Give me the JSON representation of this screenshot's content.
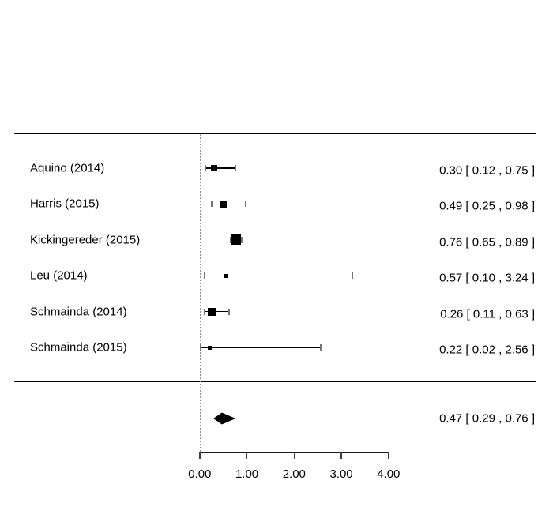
{
  "chart_data": {
    "type": "forest",
    "title": "",
    "studies": [
      {
        "label": "Aquino (2014)",
        "estimate": 0.3,
        "ci_lower": 0.12,
        "ci_upper": 0.75,
        "annotation": "0.30 [ 0.12 , 0.75 ]",
        "marker_size": 8
      },
      {
        "label": "Harris (2015)",
        "estimate": 0.49,
        "ci_lower": 0.25,
        "ci_upper": 0.98,
        "annotation": "0.49 [ 0.25 , 0.98 ]",
        "marker_size": 9
      },
      {
        "label": "Kickingereder (2015)",
        "estimate": 0.76,
        "ci_lower": 0.65,
        "ci_upper": 0.89,
        "annotation": "0.76 [ 0.65 , 0.89 ]",
        "marker_size": 13
      },
      {
        "label": "Leu (2014)",
        "estimate": 0.57,
        "ci_lower": 0.1,
        "ci_upper": 3.24,
        "annotation": "0.57 [ 0.10 , 3.24 ]",
        "marker_size": 5
      },
      {
        "label": "Schmainda (2014)",
        "estimate": 0.26,
        "ci_lower": 0.11,
        "ci_upper": 0.63,
        "annotation": "0.26 [ 0.11 , 0.63 ]",
        "marker_size": 10
      },
      {
        "label": "Schmainda (2015)",
        "estimate": 0.22,
        "ci_lower": 0.02,
        "ci_upper": 2.56,
        "annotation": "0.22 [ 0.02 , 2.56 ]",
        "marker_size": 5
      }
    ],
    "summary": {
      "estimate": 0.47,
      "ci_lower": 0.29,
      "ci_upper": 0.76,
      "annotation": "0.47 [ 0.29 , 0.76 ]"
    },
    "x_axis": {
      "range": [
        0,
        4
      ],
      "ticks": [
        0,
        1,
        2,
        3,
        4
      ],
      "tick_labels": [
        "0.00",
        "1.00",
        "2.00",
        "3.00",
        "4.00"
      ],
      "reference_line_value": 0.0,
      "reference_line_style": "dotted"
    },
    "layout_hints": {
      "grid": "off",
      "legend": "none",
      "orientation": "horizontal-ci"
    },
    "colors": {
      "background": "#ffffff",
      "text": "#000000",
      "ci_line": "#000000",
      "ci_cap": "#757575",
      "marker": "#000000",
      "summary_diamond": "#000000",
      "reference_line": "#8f8f8f",
      "axis": "#1a1a1a"
    }
  }
}
